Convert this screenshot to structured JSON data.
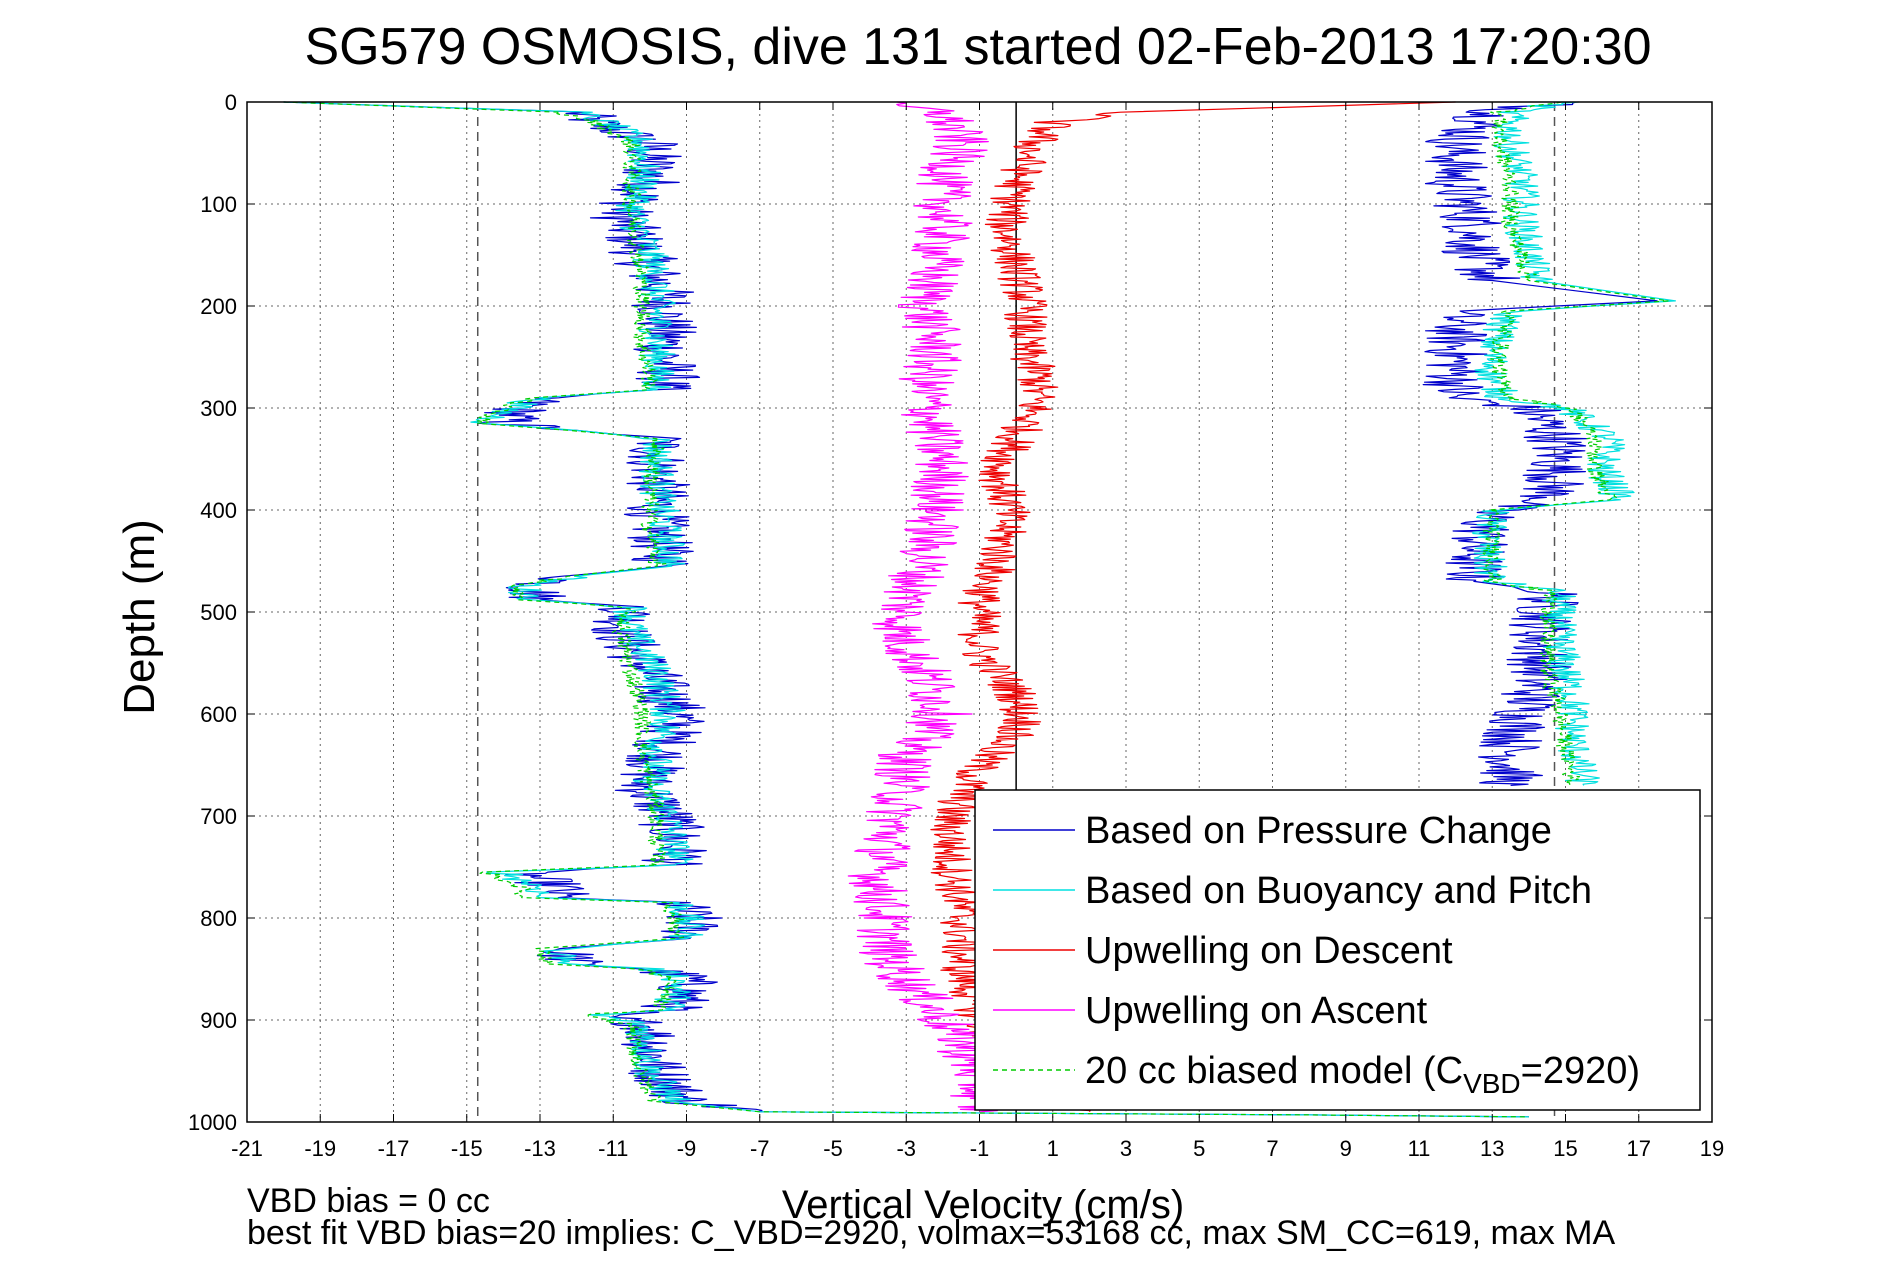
{
  "chart_data": {
    "type": "line",
    "title": "SG579 OSMOSIS, dive 131 started 02-Feb-2013 17:20:30",
    "xlabel": "Vertical Velocity (cm/s)",
    "ylabel": "Depth (m)",
    "xlim": [
      -21,
      19
    ],
    "ylim": [
      0,
      1000
    ],
    "y_reversed": true,
    "x_ticks": [
      -21,
      -19,
      -17,
      -15,
      -13,
      -11,
      -9,
      -7,
      -5,
      -3,
      -1,
      1,
      3,
      5,
      7,
      9,
      11,
      13,
      15,
      17,
      19
    ],
    "y_ticks": [
      0,
      100,
      200,
      300,
      400,
      500,
      600,
      700,
      800,
      900,
      1000
    ],
    "grid": true,
    "legend_position": "bottom-right",
    "reference_lines": [
      {
        "x": -14.7,
        "style": "dashed",
        "color": "#555555"
      },
      {
        "x": 0,
        "style": "solid",
        "color": "#000000"
      },
      {
        "x": 14.7,
        "style": "dashed",
        "color": "#555555"
      }
    ],
    "series": [
      {
        "name": "Based on Pressure Change",
        "color": "#0000cc",
        "style": "solid",
        "noise": 0.9,
        "descent": [
          [
            -20,
            0
          ],
          [
            -12,
            10
          ],
          [
            -11.5,
            20
          ],
          [
            -10,
            40
          ],
          [
            -10,
            80
          ],
          [
            -10.8,
            110
          ],
          [
            -10.2,
            150
          ],
          [
            -9.6,
            190
          ],
          [
            -9.6,
            240
          ],
          [
            -9.5,
            270
          ],
          [
            -9.8,
            282
          ],
          [
            -13,
            290
          ],
          [
            -13.5,
            300
          ],
          [
            -14,
            315
          ],
          [
            -12,
            322
          ],
          [
            -9.8,
            330
          ],
          [
            -9.8,
            380
          ],
          [
            -9.8,
            420
          ],
          [
            -9.6,
            455
          ],
          [
            -12,
            465
          ],
          [
            -13.2,
            475
          ],
          [
            -13,
            488
          ],
          [
            -10.5,
            495
          ],
          [
            -10.8,
            520
          ],
          [
            -10,
            560
          ],
          [
            -9.2,
            600
          ],
          [
            -9.7,
            640
          ],
          [
            -10.2,
            670
          ],
          [
            -9.5,
            700
          ],
          [
            -9.2,
            740
          ],
          [
            -9.5,
            748
          ],
          [
            -13.5,
            755
          ],
          [
            -12.5,
            770
          ],
          [
            -12.5,
            780
          ],
          [
            -9.3,
            785
          ],
          [
            -8.9,
            800
          ],
          [
            -8.9,
            820
          ],
          [
            -12.5,
            830
          ],
          [
            -12,
            845
          ],
          [
            -10,
            850
          ],
          [
            -9,
            858
          ],
          [
            -9,
            875
          ],
          [
            -9.5,
            890
          ],
          [
            -11.5,
            895
          ],
          [
            -10,
            905
          ],
          [
            -9.8,
            950
          ],
          [
            -9,
            980
          ],
          [
            -7,
            990
          ],
          [
            8,
            993
          ],
          [
            14,
            995
          ]
        ],
        "ascent": [
          [
            15,
            0
          ],
          [
            13,
            10
          ],
          [
            12,
            40
          ],
          [
            12,
            80
          ],
          [
            12.5,
            120
          ],
          [
            12.5,
            150
          ],
          [
            13,
            175
          ],
          [
            17.5,
            195
          ],
          [
            12,
            205
          ],
          [
            12,
            240
          ],
          [
            12,
            270
          ],
          [
            12,
            290
          ],
          [
            14,
            300
          ],
          [
            14.8,
            330
          ],
          [
            14.8,
            360
          ],
          [
            14.5,
            390
          ],
          [
            13,
            400
          ],
          [
            12.5,
            440
          ],
          [
            12.5,
            470
          ],
          [
            14.6,
            480
          ],
          [
            14.3,
            520
          ],
          [
            14.3,
            560
          ],
          [
            14,
            590
          ],
          [
            13.5,
            630
          ],
          [
            13.5,
            670
          ]
        ]
      },
      {
        "name": "Based on Buoyancy and Pitch",
        "color": "#00e0e0",
        "style": "solid",
        "noise": 0.5,
        "descent": [
          [
            -20,
            0
          ],
          [
            -12,
            10
          ],
          [
            -11.2,
            20
          ],
          [
            -10.2,
            40
          ],
          [
            -10.2,
            80
          ],
          [
            -10.5,
            110
          ],
          [
            -10,
            150
          ],
          [
            -9.8,
            190
          ],
          [
            -9.8,
            240
          ],
          [
            -9.8,
            270
          ],
          [
            -9.8,
            282
          ],
          [
            -13,
            290
          ],
          [
            -13.8,
            300
          ],
          [
            -14.5,
            315
          ],
          [
            -12,
            322
          ],
          [
            -9.8,
            330
          ],
          [
            -9.8,
            380
          ],
          [
            -9.6,
            420
          ],
          [
            -9.4,
            455
          ],
          [
            -12,
            465
          ],
          [
            -13.5,
            475
          ],
          [
            -13.2,
            488
          ],
          [
            -10.5,
            495
          ],
          [
            -10.5,
            520
          ],
          [
            -9.8,
            560
          ],
          [
            -9.5,
            600
          ],
          [
            -9.8,
            640
          ],
          [
            -10,
            670
          ],
          [
            -9.5,
            700
          ],
          [
            -9.3,
            740
          ],
          [
            -9.3,
            748
          ],
          [
            -14,
            755
          ],
          [
            -13,
            770
          ],
          [
            -13,
            780
          ],
          [
            -9.2,
            785
          ],
          [
            -9,
            800
          ],
          [
            -9,
            820
          ],
          [
            -12.5,
            830
          ],
          [
            -12.2,
            845
          ],
          [
            -10,
            850
          ],
          [
            -9.2,
            858
          ],
          [
            -9.3,
            875
          ],
          [
            -9.5,
            890
          ],
          [
            -11.5,
            895
          ],
          [
            -10.2,
            905
          ],
          [
            -10,
            950
          ],
          [
            -9.3,
            980
          ],
          [
            -7,
            990
          ],
          [
            8,
            993
          ],
          [
            14,
            995
          ]
        ],
        "ascent": [
          [
            15,
            0
          ],
          [
            13.5,
            10
          ],
          [
            13.5,
            40
          ],
          [
            13.8,
            80
          ],
          [
            13.8,
            120
          ],
          [
            14,
            150
          ],
          [
            14.2,
            175
          ],
          [
            18,
            195
          ],
          [
            13.5,
            205
          ],
          [
            13,
            240
          ],
          [
            13,
            270
          ],
          [
            13.3,
            290
          ],
          [
            15,
            300
          ],
          [
            16.2,
            330
          ],
          [
            16,
            360
          ],
          [
            16.5,
            390
          ],
          [
            13,
            400
          ],
          [
            12.8,
            440
          ],
          [
            13,
            470
          ],
          [
            14.8,
            480
          ],
          [
            14.8,
            520
          ],
          [
            15,
            560
          ],
          [
            15.2,
            590
          ],
          [
            15.2,
            630
          ],
          [
            15.5,
            670
          ]
        ]
      },
      {
        "name": "Upwelling on Descent",
        "color": "#ee0000",
        "style": "solid",
        "noise": 0.6,
        "descent": [
          [
            12,
            0
          ],
          [
            3,
            10
          ],
          [
            1,
            20
          ],
          [
            0.5,
            40
          ],
          [
            0,
            80
          ],
          [
            -0.3,
            120
          ],
          [
            0,
            160
          ],
          [
            0.3,
            200
          ],
          [
            0.2,
            240
          ],
          [
            0.6,
            270
          ],
          [
            0.5,
            300
          ],
          [
            0,
            330
          ],
          [
            -0.5,
            360
          ],
          [
            -0.2,
            400
          ],
          [
            -0.5,
            450
          ],
          [
            -1,
            490
          ],
          [
            -1,
            540
          ],
          [
            0,
            580
          ],
          [
            0.2,
            610
          ],
          [
            -1,
            650
          ],
          [
            -1.8,
            700
          ],
          [
            -1.8,
            740
          ],
          [
            -1.5,
            800
          ],
          [
            -1.5,
            850
          ],
          [
            -1,
            900
          ],
          [
            0,
            950
          ],
          [
            2,
            990
          ]
        ]
      },
      {
        "name": "Upwelling on Ascent",
        "color": "#ff00ff",
        "style": "solid",
        "noise": 0.8,
        "descent": [
          [
            -4,
            0
          ],
          [
            -2,
            10
          ],
          [
            -1.5,
            40
          ],
          [
            -2,
            80
          ],
          [
            -2,
            120
          ],
          [
            -2.2,
            160
          ],
          [
            -2.5,
            200
          ],
          [
            -2.2,
            240
          ],
          [
            -2.5,
            280
          ],
          [
            -2.3,
            320
          ],
          [
            -2,
            360
          ],
          [
            -2.2,
            400
          ],
          [
            -2.5,
            450
          ],
          [
            -3,
            490
          ],
          [
            -3.2,
            520
          ],
          [
            -2.5,
            560
          ],
          [
            -2,
            600
          ],
          [
            -3,
            640
          ],
          [
            -3.2,
            680
          ],
          [
            -3.5,
            720
          ],
          [
            -3.8,
            760
          ],
          [
            -3.6,
            800
          ],
          [
            -3.5,
            840
          ],
          [
            -2.5,
            880
          ],
          [
            -1.5,
            920
          ],
          [
            -1,
            960
          ],
          [
            -1,
            990
          ]
        ]
      },
      {
        "name": "20 cc biased model",
        "color": "#00cc00",
        "style": "dashed",
        "noise": 0.25,
        "descent": [
          [
            -20,
            0
          ],
          [
            -12.5,
            10
          ],
          [
            -11.5,
            20
          ],
          [
            -10.5,
            40
          ],
          [
            -10.5,
            80
          ],
          [
            -10.5,
            110
          ],
          [
            -10.3,
            150
          ],
          [
            -10.2,
            190
          ],
          [
            -10.2,
            240
          ],
          [
            -10,
            270
          ],
          [
            -10,
            282
          ],
          [
            -13.2,
            290
          ],
          [
            -14,
            300
          ],
          [
            -14.7,
            315
          ],
          [
            -12.2,
            322
          ],
          [
            -9.8,
            330
          ],
          [
            -10,
            380
          ],
          [
            -10,
            420
          ],
          [
            -9.8,
            455
          ],
          [
            -12.2,
            465
          ],
          [
            -13.8,
            475
          ],
          [
            -13.6,
            488
          ],
          [
            -10.6,
            495
          ],
          [
            -10.8,
            520
          ],
          [
            -10.5,
            560
          ],
          [
            -10.2,
            600
          ],
          [
            -10.2,
            640
          ],
          [
            -10,
            670
          ],
          [
            -9.8,
            700
          ],
          [
            -9.8,
            740
          ],
          [
            -9.8,
            748
          ],
          [
            -14.5,
            755
          ],
          [
            -13.5,
            770
          ],
          [
            -13.5,
            780
          ],
          [
            -9.5,
            785
          ],
          [
            -9.3,
            800
          ],
          [
            -9.3,
            820
          ],
          [
            -13,
            830
          ],
          [
            -12.8,
            845
          ],
          [
            -10.3,
            850
          ],
          [
            -9.5,
            858
          ],
          [
            -9.6,
            875
          ],
          [
            -9.8,
            890
          ],
          [
            -11.8,
            895
          ],
          [
            -10.5,
            905
          ],
          [
            -10.3,
            950
          ],
          [
            -9.8,
            980
          ],
          [
            -7,
            990
          ],
          [
            8,
            993
          ],
          [
            14,
            995
          ]
        ],
        "ascent": [
          [
            15,
            0
          ],
          [
            13.2,
            10
          ],
          [
            13.2,
            40
          ],
          [
            13.5,
            80
          ],
          [
            13.5,
            120
          ],
          [
            13.8,
            150
          ],
          [
            14,
            175
          ],
          [
            17.8,
            195
          ],
          [
            13.5,
            205
          ],
          [
            13.2,
            240
          ],
          [
            13.2,
            270
          ],
          [
            13.5,
            290
          ],
          [
            15.2,
            300
          ],
          [
            15.8,
            330
          ],
          [
            15.8,
            360
          ],
          [
            16.2,
            390
          ],
          [
            13,
            400
          ],
          [
            13,
            440
          ],
          [
            13,
            470
          ],
          [
            14.6,
            480
          ],
          [
            14.5,
            520
          ],
          [
            14.5,
            560
          ],
          [
            14.8,
            590
          ],
          [
            15,
            630
          ],
          [
            15.2,
            670
          ]
        ]
      }
    ],
    "legend": [
      {
        "label": "Based on Pressure Change",
        "color": "#0000cc",
        "style": "solid"
      },
      {
        "label": "Based on Buoyancy and Pitch",
        "color": "#00e0e0",
        "style": "solid"
      },
      {
        "label": "Upwelling on Descent",
        "color": "#ee0000",
        "style": "solid"
      },
      {
        "label": "Upwelling on Ascent",
        "color": "#ff00ff",
        "style": "solid"
      },
      {
        "label": "20 cc biased model (C",
        "sub": "VBD",
        "suffix": "=2920)",
        "color": "#00cc00",
        "style": "dashed"
      }
    ],
    "annotations": [
      "VBD bias = 0 cc",
      "best fit VBD bias=20 implies: C_VBD=2920, volmax=53168 cc, max SM_CC=619, max MA"
    ]
  }
}
